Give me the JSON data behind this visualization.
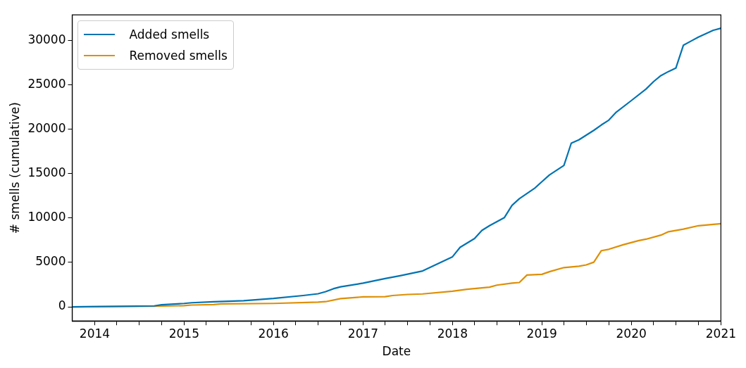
{
  "chart_data": {
    "type": "line",
    "xlabel": "Date",
    "ylabel": "# smells (cumulative)",
    "xlim": [
      "2013-10",
      "2021-01"
    ],
    "ylim": [
      -1600,
      32900
    ],
    "xticks": [
      {
        "value": "2014",
        "label": "2014"
      },
      {
        "value": "2014-04",
        "label": null
      },
      {
        "value": "2014-07",
        "label": null
      },
      {
        "value": "2014-10",
        "label": null
      },
      {
        "value": "2015",
        "label": "2015"
      },
      {
        "value": "2015-04",
        "label": null
      },
      {
        "value": "2015-07",
        "label": null
      },
      {
        "value": "2015-10",
        "label": null
      },
      {
        "value": "2016",
        "label": "2016"
      },
      {
        "value": "2016-04",
        "label": null
      },
      {
        "value": "2016-07",
        "label": null
      },
      {
        "value": "2016-10",
        "label": null
      },
      {
        "value": "2017",
        "label": "2017"
      },
      {
        "value": "2017-04",
        "label": null
      },
      {
        "value": "2017-07",
        "label": null
      },
      {
        "value": "2017-10",
        "label": null
      },
      {
        "value": "2018",
        "label": "2018"
      },
      {
        "value": "2018-04",
        "label": null
      },
      {
        "value": "2018-07",
        "label": null
      },
      {
        "value": "2018-10",
        "label": null
      },
      {
        "value": "2019",
        "label": "2019"
      },
      {
        "value": "2019-04",
        "label": null
      },
      {
        "value": "2019-07",
        "label": null
      },
      {
        "value": "2019-10",
        "label": null
      },
      {
        "value": "2020",
        "label": "2020"
      },
      {
        "value": "2020-04",
        "label": null
      },
      {
        "value": "2020-07",
        "label": null
      },
      {
        "value": "2020-10",
        "label": null
      },
      {
        "value": "2021",
        "label": "2021"
      }
    ],
    "yticks": [
      0,
      5000,
      10000,
      15000,
      20000,
      25000,
      30000
    ],
    "grid": false,
    "legend": "top left",
    "marker": "none",
    "line_style": "solid",
    "series": [
      {
        "name": "Added smells",
        "color": "#0173b2",
        "x": [
          "2013-10",
          "2014-09",
          "2014-10",
          "2015-01",
          "2015-02",
          "2015-05",
          "2015-09",
          "2016-01",
          "2016-05",
          "2016-07",
          "2016-08",
          "2016-09",
          "2016-10",
          "2017-01",
          "2017-04",
          "2017-06",
          "2017-09",
          "2018-01",
          "2018-02",
          "2018-04",
          "2018-05",
          "2018-06",
          "2018-08",
          "2018-09",
          "2018-10",
          "2018-12",
          "2019-01",
          "2019-02",
          "2019-04",
          "2019-05",
          "2019-06",
          "2019-08",
          "2019-09",
          "2019-10",
          "2019-11",
          "2020-01",
          "2020-03",
          "2020-04",
          "2020-05",
          "2020-06",
          "2020-07",
          "2020-08",
          "2020-09",
          "2020-10",
          "2020-12",
          "2021-01"
        ],
        "values": [
          0,
          100,
          230,
          380,
          460,
          560,
          690,
          940,
          1270,
          1470,
          1710,
          2030,
          2250,
          2670,
          3180,
          3500,
          4040,
          5640,
          6700,
          7700,
          8610,
          9140,
          10060,
          11430,
          12190,
          13330,
          14100,
          14860,
          15930,
          18440,
          18820,
          19890,
          20500,
          21030,
          21950,
          23240,
          24540,
          25380,
          26060,
          26520,
          26900,
          29490,
          29950,
          30400,
          31170,
          31400
        ]
      },
      {
        "name": "Removed smells",
        "color": "#de8f05",
        "x": [
          "2013-10",
          "2014-09",
          "2015-01",
          "2015-02",
          "2015-05",
          "2015-06",
          "2016-01",
          "2016-07",
          "2016-08",
          "2016-10",
          "2017-01",
          "2017-04",
          "2017-05",
          "2017-07",
          "2017-09",
          "2018-01",
          "2018-03",
          "2018-06",
          "2018-07",
          "2018-09",
          "2018-10",
          "2018-11",
          "2019-01",
          "2019-02",
          "2019-04",
          "2019-06",
          "2019-07",
          "2019-08",
          "2019-09",
          "2019-10",
          "2019-12",
          "2020-02",
          "2020-03",
          "2020-05",
          "2020-06",
          "2020-08",
          "2020-10",
          "2021-01"
        ],
        "values": [
          0,
          60,
          130,
          200,
          250,
          330,
          380,
          530,
          580,
          920,
          1120,
          1140,
          1270,
          1390,
          1450,
          1750,
          1980,
          2210,
          2440,
          2670,
          2740,
          3580,
          3660,
          3960,
          4420,
          4570,
          4720,
          5030,
          6330,
          6480,
          7010,
          7470,
          7620,
          8080,
          8460,
          8760,
          9140,
          9370
        ]
      }
    ]
  }
}
